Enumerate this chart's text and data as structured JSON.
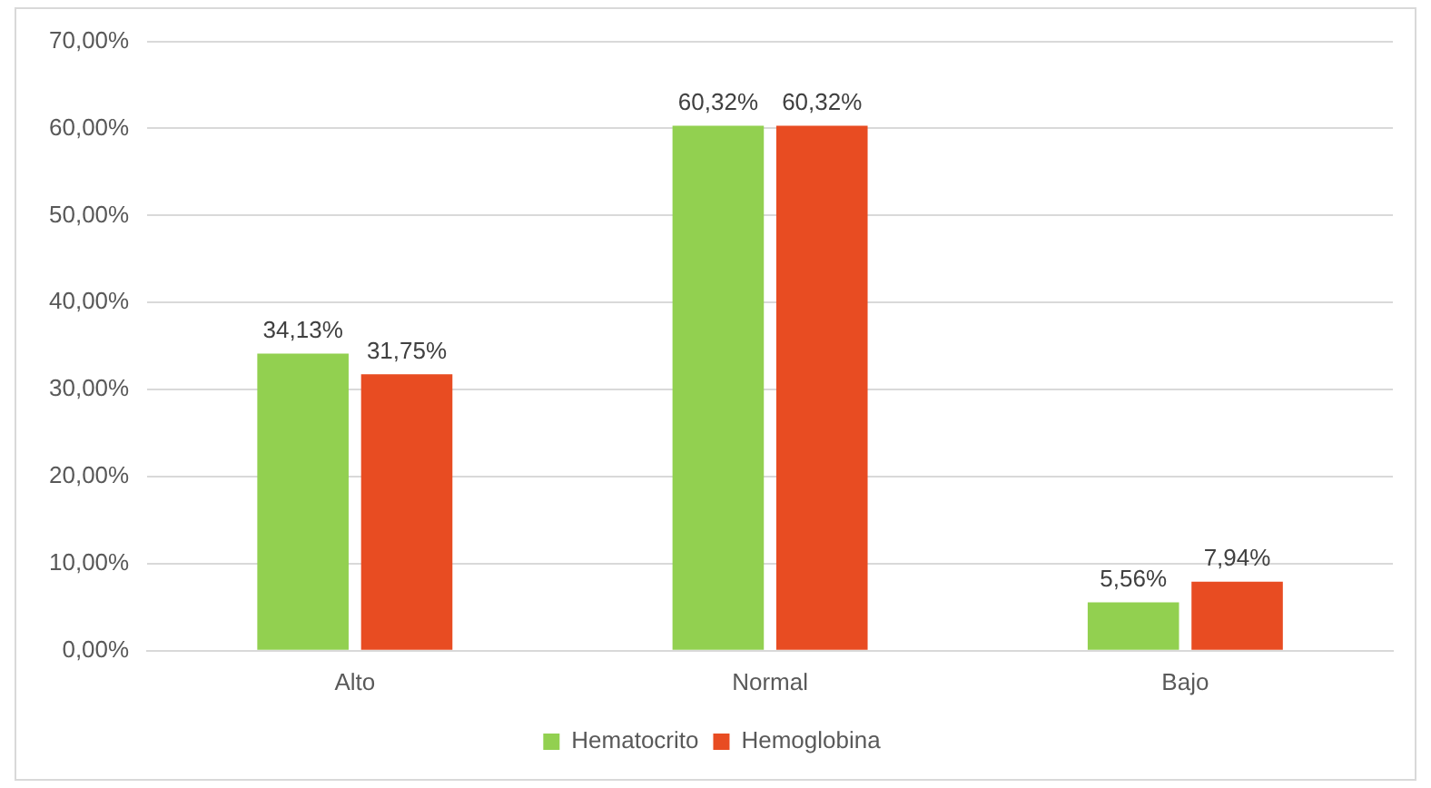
{
  "chart_data": {
    "type": "bar",
    "categories": [
      "Alto",
      "Normal",
      "Bajo"
    ],
    "series": [
      {
        "name": "Hematocrito",
        "color": "#92d050",
        "values": [
          34.13,
          60.32,
          5.56
        ],
        "value_labels": [
          "34,13%",
          "60,32%",
          "5,56%"
        ]
      },
      {
        "name": "Hemoglobina",
        "color": "#e84c22",
        "values": [
          31.75,
          60.32,
          7.94
        ],
        "value_labels": [
          "31,75%",
          "60,32%",
          "7,94%"
        ]
      }
    ],
    "ylim": [
      0,
      70
    ],
    "yticks": [
      {
        "value": 0,
        "label": "0,00%"
      },
      {
        "value": 10,
        "label": "10,00%"
      },
      {
        "value": 20,
        "label": "20,00%"
      },
      {
        "value": 30,
        "label": "30,00%"
      },
      {
        "value": 40,
        "label": "40,00%"
      },
      {
        "value": 50,
        "label": "50,00%"
      },
      {
        "value": 60,
        "label": "60,00%"
      },
      {
        "value": 70,
        "label": "70,00%"
      }
    ],
    "grid": "y",
    "legend": "bottom"
  }
}
